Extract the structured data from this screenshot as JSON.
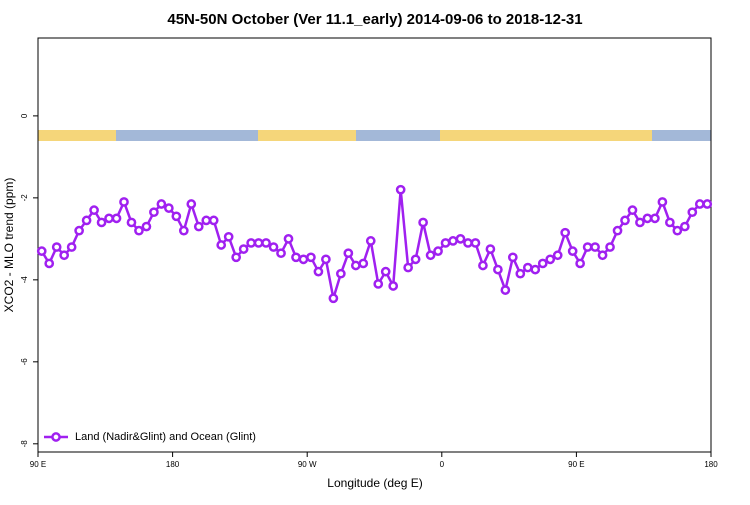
{
  "chart_data": {
    "type": "line",
    "title": "45N-50N October (Ver 11.1_early)   2014-09-06 to 2018-12-31",
    "x_label": "Longitude (deg E)",
    "y_label": "XCO2 - MLO trend (ppm)",
    "legend_position": "bottom-left",
    "xlim": [
      90,
      540
    ],
    "xticks": [
      {
        "value": 90,
        "label": "90 E"
      },
      180,
      {
        "value": 270,
        "label": "90 W"
      },
      {
        "value": 360,
        "label": "0"
      },
      {
        "value": 450,
        "label": "90 E"
      },
      {
        "value": 540,
        "label": "180"
      }
    ],
    "ylim": [
      -8.2,
      1.9
    ],
    "yticks": [
      0,
      -2,
      -4,
      -6,
      -8
    ],
    "series": [
      {
        "name": "Land (Nadir&Glint) and Ocean (Glint)",
        "color": "#a020f0",
        "x": [
          92.5,
          97.5,
          102.5,
          107.5,
          112.5,
          117.5,
          122.5,
          127.5,
          132.5,
          137.5,
          142.5,
          147.5,
          152.5,
          157.5,
          162.5,
          167.5,
          172.5,
          177.5,
          182.5,
          187.5,
          192.5,
          197.5,
          202.5,
          207.5,
          212.5,
          217.5,
          222.5,
          227.5,
          232.5,
          237.5,
          242.5,
          247.5,
          252.5,
          257.5,
          262.5,
          267.5,
          272.5,
          277.5,
          282.5,
          287.5,
          292.5,
          297.5,
          302.5,
          307.5,
          312.5,
          317.5,
          322.5,
          327.5,
          332.5,
          337.5,
          342.5,
          347.5,
          352.5,
          357.5,
          362.5,
          367.5,
          372.5,
          377.5,
          382.5,
          387.5,
          392.5,
          397.5,
          402.5,
          407.5,
          412.5,
          417.5,
          422.5,
          427.5,
          432.5,
          437.5,
          442.5,
          447.5,
          452.5,
          457.5,
          462.5,
          467.5,
          472.5,
          477.5,
          482.5,
          487.5,
          492.5,
          497.5,
          502.5,
          507.5,
          512.5,
          517.5,
          522.5,
          527.5,
          532.5,
          537.5
        ],
        "values": [
          -3.3,
          -3.6,
          -3.2,
          -3.4,
          -3.2,
          -2.8,
          -2.55,
          -2.3,
          -2.6,
          -2.5,
          -2.5,
          -2.1,
          -2.6,
          -2.8,
          -2.7,
          -2.35,
          -2.15,
          -2.25,
          -2.45,
          -2.8,
          -2.15,
          -2.7,
          -2.55,
          -2.55,
          -3.15,
          -2.95,
          -3.45,
          -3.25,
          -3.1,
          -3.1,
          -3.1,
          -3.2,
          -3.35,
          -3.0,
          -3.45,
          -3.5,
          -3.45,
          -3.8,
          -3.5,
          -4.45,
          -3.85,
          -3.35,
          -3.65,
          -3.6,
          -3.05,
          -4.1,
          -3.8,
          -4.15,
          -1.8,
          -3.7,
          -3.5,
          -2.6,
          -3.4,
          -3.3,
          -3.1,
          -3.05,
          -3.0,
          -3.1,
          -3.1,
          -3.65,
          -3.25,
          -3.75,
          -4.25,
          -3.45,
          -3.85,
          -3.7,
          -3.75,
          -3.6,
          -3.5,
          -3.4,
          -2.85,
          -3.3,
          -3.6,
          -3.2,
          -3.2,
          -3.4,
          -3.2,
          -2.8,
          -2.55,
          -2.3,
          -2.6,
          -2.5,
          -2.5,
          -2.1,
          -2.6,
          -2.8,
          -2.7,
          -2.35,
          -2.15,
          -2.15
        ]
      }
    ]
  }
}
